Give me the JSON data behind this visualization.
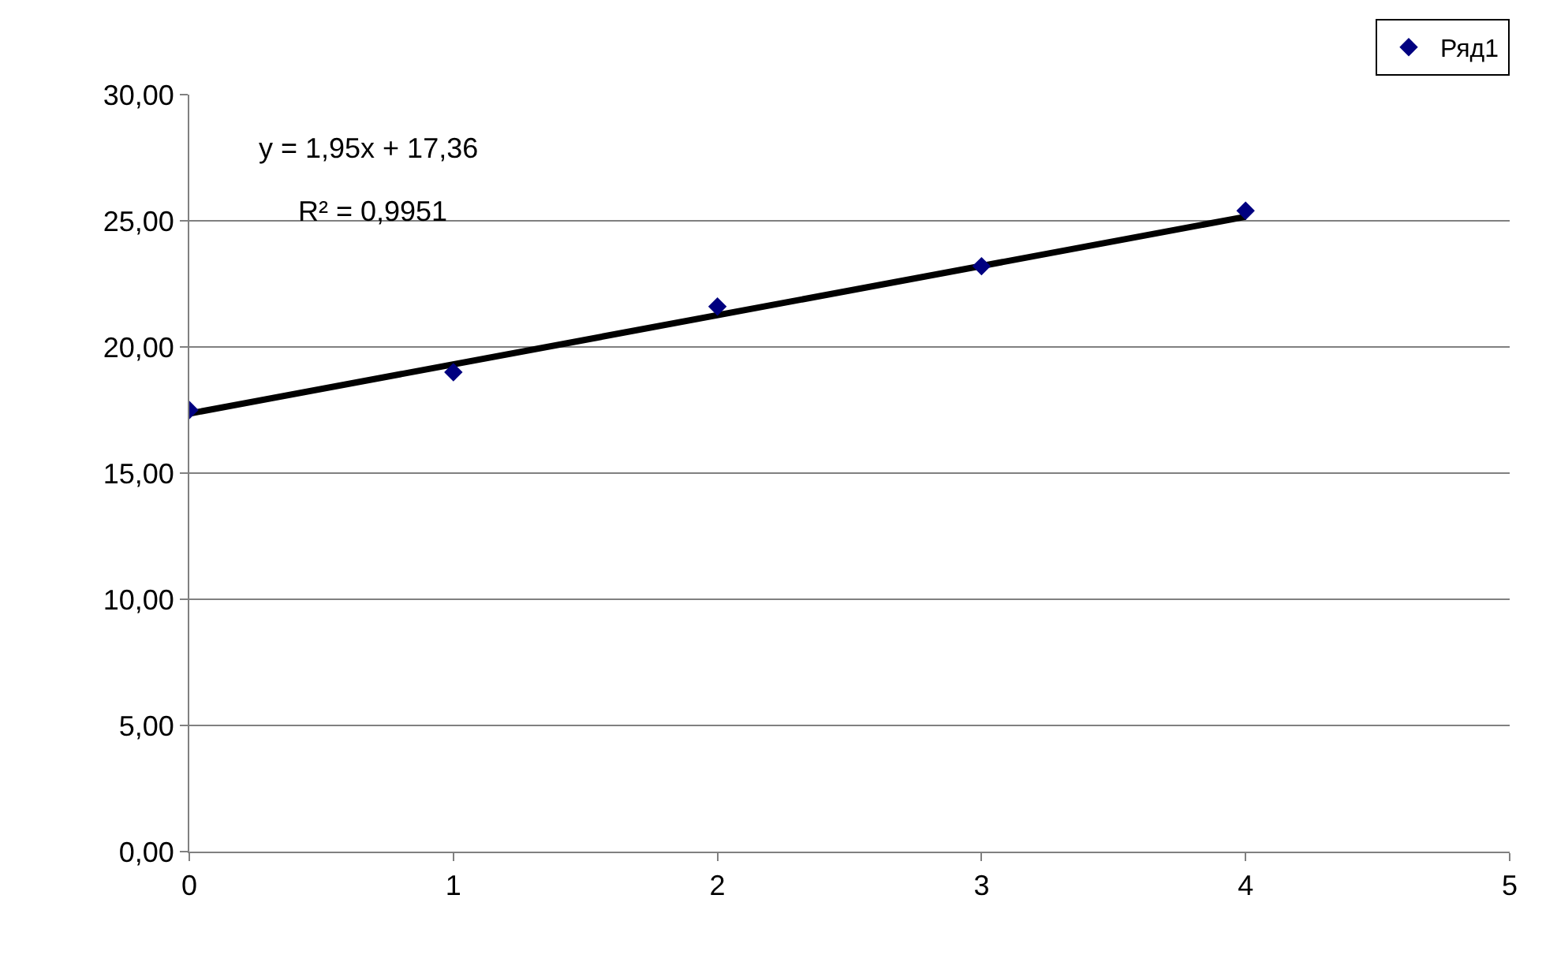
{
  "chart_data": {
    "type": "scatter",
    "x": [
      0,
      1,
      2,
      3,
      4
    ],
    "series": [
      {
        "type": "line",
        "color": "#000000",
        "x": [
          0,
          4
        ],
        "values": [
          17.36,
          25.16
        ],
        "marker": "none",
        "line_style": "solid"
      },
      {
        "name": "Ряд1",
        "color": "#000080",
        "values": [
          17.5,
          19.0,
          21.6,
          23.2,
          25.4
        ],
        "marker": "diamond"
      }
    ],
    "annotations": [
      "y = 1,95x + 17,36",
      "R² = 0,9951"
    ],
    "xlim": [
      0,
      5
    ],
    "xticks": [
      0,
      1,
      2,
      3,
      4,
      5
    ],
    "ylim": [
      0,
      30
    ],
    "yticks": [
      {
        "value": 0,
        "label": "0,00"
      },
      {
        "value": 5,
        "label": "5,00"
      },
      {
        "value": 10,
        "label": "10,00"
      },
      {
        "value": 15,
        "label": "15,00"
      },
      {
        "value": 20,
        "label": "20,00"
      },
      {
        "value": 25,
        "label": "25,00"
      },
      {
        "value": 30,
        "label": "30,00"
      }
    ],
    "grid": "y",
    "legend": "top right"
  }
}
